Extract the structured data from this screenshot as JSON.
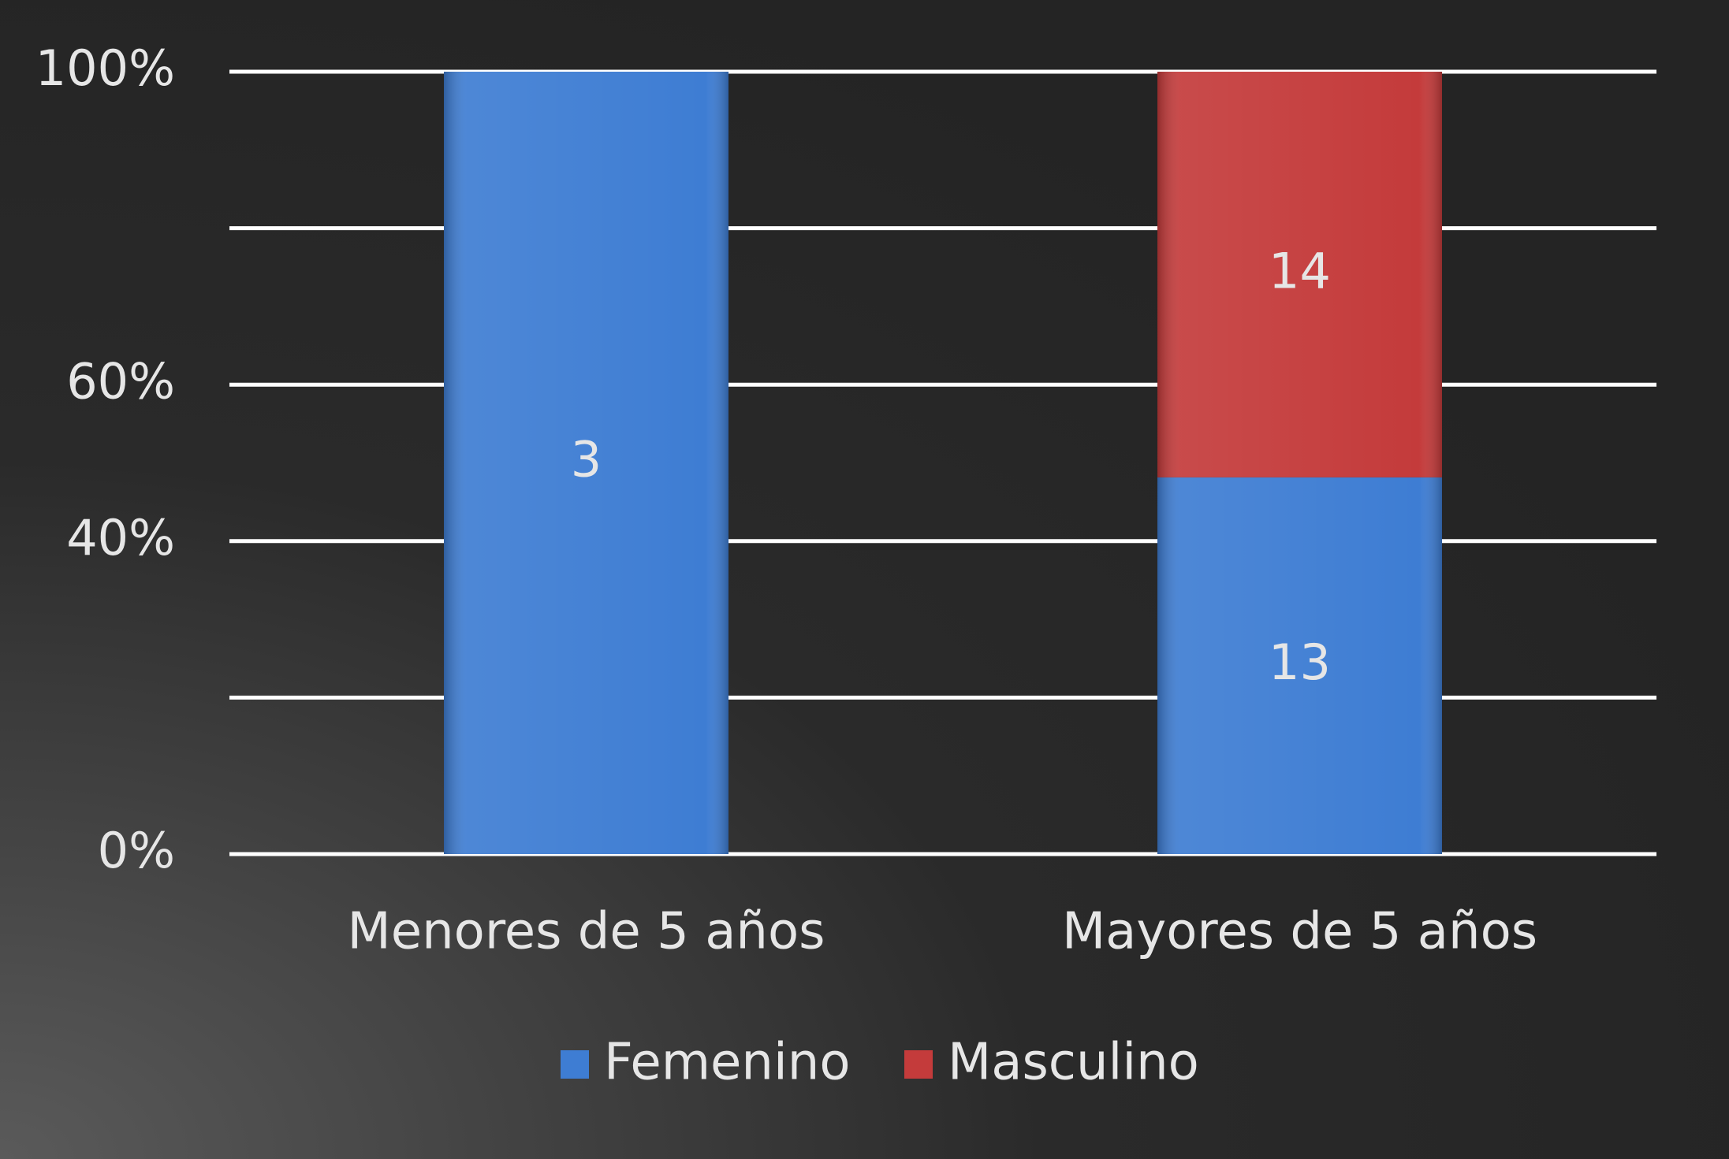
{
  "chart_data": {
    "type": "bar",
    "stacking": "percent",
    "categories": [
      "Menores de 5 años",
      "Mayores de 5 años"
    ],
    "series": [
      {
        "name": "Femenino",
        "color": "#3e7dd3",
        "values": [
          3,
          13
        ]
      },
      {
        "name": "Masculino",
        "color": "#c43b3b",
        "values": [
          null,
          14
        ]
      }
    ],
    "ylim": [
      0,
      100
    ],
    "yticks": [
      {
        "value": 0,
        "label": "0%"
      },
      {
        "value": 20,
        "label": null
      },
      {
        "value": 40,
        "label": "40%"
      },
      {
        "value": 60,
        "label": "60%"
      },
      {
        "value": 80,
        "label": null
      },
      {
        "value": 100,
        "label": "100%"
      }
    ],
    "grid": true,
    "legend": "bottom"
  }
}
